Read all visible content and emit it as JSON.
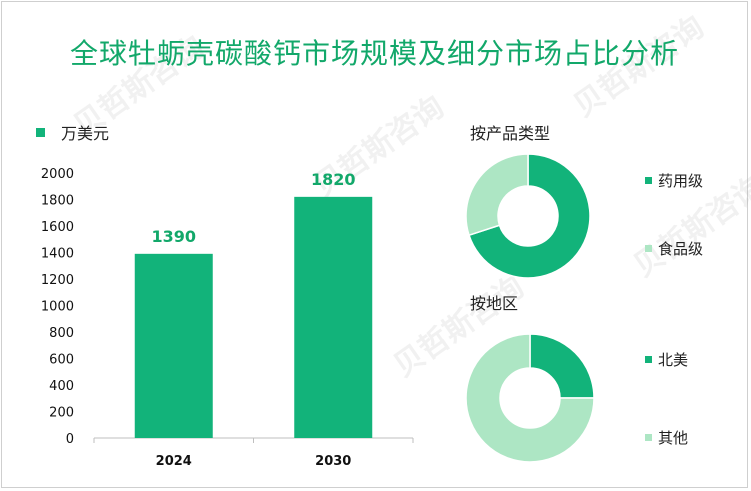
{
  "title": "全球牡蛎壳碳酸钙市场规模及细分市场占比分析",
  "watermark": "贝哲斯咨询",
  "colors": {
    "accent": "#12b37a",
    "light": "#ade6c4",
    "title": "#12a86a"
  },
  "chart_data": [
    {
      "type": "bar",
      "legend": "万美元",
      "categories": [
        "2024",
        "2030"
      ],
      "values": [
        1390,
        1820
      ],
      "yticks": [
        0,
        200,
        400,
        600,
        800,
        1000,
        1200,
        1400,
        1600,
        1800,
        2000
      ],
      "ylim": [
        0,
        2000
      ]
    },
    {
      "type": "pie",
      "title": "按产品类型",
      "labels": [
        "药用级",
        "食品级"
      ],
      "values": [
        70,
        30
      ]
    },
    {
      "type": "pie",
      "title": "按地区",
      "labels": [
        "北美",
        "其他"
      ],
      "values": [
        25,
        75
      ]
    }
  ]
}
